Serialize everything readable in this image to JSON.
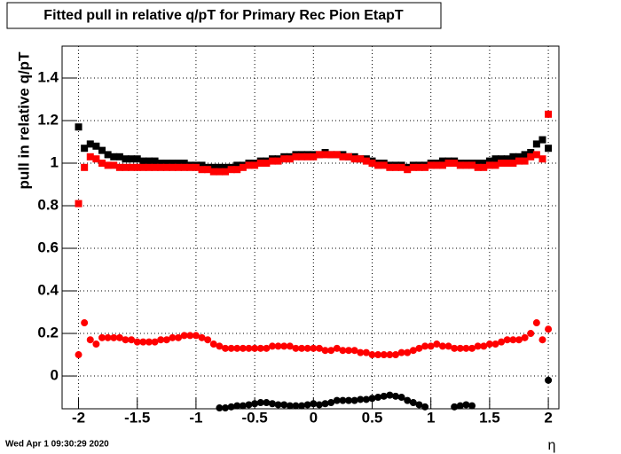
{
  "chart_data": {
    "type": "scatter",
    "title": "Fitted pull in relative q/pT for Primary Rec Pion EtapT",
    "y_label": "pull in relative q/pT",
    "x_label": "η",
    "footer": "Wed Apr  1 09:30:29 2020",
    "xlim": [
      -2.14,
      2.09
    ],
    "ylim": [
      -0.154,
      1.55
    ],
    "xticks": [
      -2,
      -1.5,
      -1,
      -0.5,
      0,
      0.5,
      1,
      1.5,
      2
    ],
    "yticks": [
      0,
      0.2,
      0.4,
      0.6,
      0.8,
      1,
      1.2,
      1.4
    ],
    "grid": true,
    "x": [
      -2.0,
      -1.95,
      -1.9,
      -1.85,
      -1.8,
      -1.75,
      -1.7,
      -1.65,
      -1.6,
      -1.55,
      -1.5,
      -1.45,
      -1.4,
      -1.35,
      -1.3,
      -1.25,
      -1.2,
      -1.15,
      -1.1,
      -1.05,
      -1.0,
      -0.95,
      -0.9,
      -0.85,
      -0.8,
      -0.75,
      -0.7,
      -0.65,
      -0.6,
      -0.55,
      -0.5,
      -0.45,
      -0.4,
      -0.35,
      -0.3,
      -0.25,
      -0.2,
      -0.15,
      -0.1,
      -0.05,
      0,
      0.05,
      0.1,
      0.15,
      0.2,
      0.25,
      0.3,
      0.35,
      0.4,
      0.45,
      0.5,
      0.55,
      0.6,
      0.65,
      0.7,
      0.75,
      0.8,
      0.85,
      0.9,
      0.95,
      1.0,
      1.05,
      1.1,
      1.15,
      1.2,
      1.25,
      1.3,
      1.35,
      1.4,
      1.45,
      1.5,
      1.55,
      1.6,
      1.65,
      1.7,
      1.75,
      1.8,
      1.85,
      1.9,
      1.95,
      2.0
    ],
    "series": [
      {
        "color": "#000000",
        "marker": "square",
        "values": [
          1.17,
          1.07,
          1.09,
          1.08,
          1.06,
          1.04,
          1.03,
          1.03,
          1.02,
          1.02,
          1.02,
          1.01,
          1.01,
          1.01,
          1.0,
          1.0,
          1.0,
          1.0,
          1.0,
          0.99,
          0.99,
          0.99,
          0.98,
          0.98,
          0.98,
          0.98,
          0.98,
          0.99,
          0.99,
          1.0,
          1.0,
          1.01,
          1.01,
          1.02,
          1.02,
          1.03,
          1.03,
          1.04,
          1.04,
          1.04,
          1.04,
          1.04,
          1.05,
          1.04,
          1.04,
          1.04,
          1.03,
          1.03,
          1.02,
          1.02,
          1.01,
          1.0,
          1.0,
          0.99,
          0.99,
          0.99,
          0.98,
          0.99,
          0.99,
          0.99,
          1.0,
          1.0,
          1.01,
          1.01,
          1.01,
          1.0,
          1.0,
          1.0,
          1.0,
          1.0,
          1.01,
          1.02,
          1.02,
          1.02,
          1.03,
          1.03,
          1.04,
          1.05,
          1.09,
          1.11,
          1.07
        ]
      },
      {
        "color": "#ff0000",
        "marker": "square",
        "values": [
          0.81,
          0.98,
          1.03,
          1.02,
          1.0,
          0.99,
          0.99,
          0.98,
          0.98,
          0.98,
          0.98,
          0.98,
          0.98,
          0.98,
          0.98,
          0.98,
          0.98,
          0.98,
          0.98,
          0.98,
          0.98,
          0.97,
          0.97,
          0.96,
          0.96,
          0.96,
          0.97,
          0.97,
          0.98,
          0.99,
          0.99,
          1.0,
          1.0,
          1.01,
          1.01,
          1.02,
          1.02,
          1.03,
          1.03,
          1.03,
          1.03,
          1.04,
          1.04,
          1.04,
          1.04,
          1.03,
          1.03,
          1.02,
          1.02,
          1.01,
          1.0,
          0.99,
          0.99,
          0.98,
          0.98,
          0.98,
          0.97,
          0.98,
          0.98,
          0.98,
          0.99,
          0.99,
          0.99,
          1.0,
          1.0,
          0.99,
          0.99,
          0.99,
          0.98,
          0.98,
          0.99,
          0.99,
          1.0,
          1.0,
          1.0,
          1.01,
          1.01,
          1.03,
          1.04,
          1.02,
          1.23
        ]
      },
      {
        "color": "#ff0000",
        "marker": "circle",
        "values": [
          0.1,
          0.25,
          0.17,
          0.15,
          0.18,
          0.18,
          0.18,
          0.18,
          0.17,
          0.17,
          0.16,
          0.16,
          0.16,
          0.16,
          0.17,
          0.17,
          0.18,
          0.18,
          0.19,
          0.19,
          0.19,
          0.18,
          0.17,
          0.15,
          0.14,
          0.13,
          0.13,
          0.13,
          0.13,
          0.13,
          0.13,
          0.13,
          0.13,
          0.14,
          0.14,
          0.14,
          0.14,
          0.13,
          0.13,
          0.13,
          0.13,
          0.13,
          0.12,
          0.12,
          0.13,
          0.12,
          0.12,
          0.12,
          0.11,
          0.11,
          0.1,
          0.1,
          0.1,
          0.1,
          0.1,
          0.11,
          0.11,
          0.12,
          0.13,
          0.14,
          0.14,
          0.15,
          0.14,
          0.14,
          0.13,
          0.13,
          0.13,
          0.13,
          0.14,
          0.14,
          0.15,
          0.15,
          0.16,
          0.17,
          0.17,
          0.17,
          0.18,
          0.2,
          0.25,
          0.17,
          0.22
        ]
      },
      {
        "color": "#000000",
        "marker": "circle",
        "values": [
          null,
          null,
          null,
          null,
          null,
          null,
          null,
          null,
          null,
          null,
          null,
          null,
          null,
          null,
          null,
          null,
          null,
          null,
          null,
          null,
          null,
          null,
          null,
          null,
          -0.15,
          -0.15,
          -0.145,
          -0.14,
          -0.14,
          -0.135,
          -0.13,
          -0.125,
          -0.125,
          -0.13,
          -0.135,
          -0.135,
          -0.14,
          -0.14,
          -0.14,
          -0.135,
          -0.13,
          -0.135,
          -0.13,
          -0.125,
          -0.115,
          -0.115,
          -0.115,
          -0.115,
          -0.11,
          -0.11,
          -0.105,
          -0.1,
          -0.095,
          -0.09,
          -0.095,
          -0.1,
          -0.115,
          -0.125,
          -0.135,
          -0.145,
          null,
          null,
          null,
          null,
          -0.145,
          -0.14,
          -0.135,
          -0.14,
          null,
          null,
          null,
          null,
          null,
          null,
          null,
          null,
          null,
          null,
          null,
          null,
          -0.02
        ]
      }
    ]
  }
}
